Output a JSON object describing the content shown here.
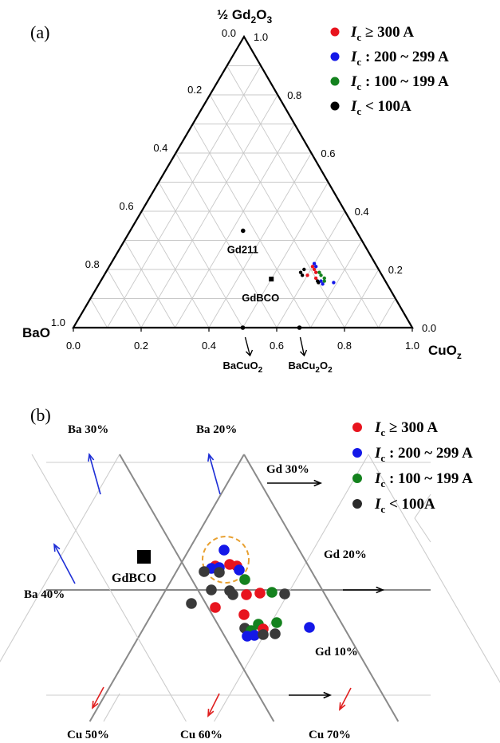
{
  "chart_data": [
    {
      "type": "scatter",
      "panel_label": "(a)",
      "axes": {
        "top": {
          "label": "½ Gd",
          "sub1": "2",
          "mid": "O",
          "sub2": "3"
        },
        "left": {
          "label": "BaO"
        },
        "right": {
          "label": "CuO",
          "sub": "z"
        },
        "bottom_ticks": [
          "0.0",
          "0.2",
          "0.4",
          "0.6",
          "0.8",
          "1.0"
        ],
        "left_ticks": [
          "0.0",
          "0.2",
          "0.4",
          "0.6",
          "0.8",
          "1.0"
        ],
        "right_ticks": [
          "1.0",
          "0.8",
          "0.6",
          "0.4",
          "0.2",
          "0.0"
        ],
        "range": [
          0,
          1
        ],
        "grid": true
      },
      "legend": {
        "placement": "top-right",
        "entries": [
          {
            "color": "#e8141e",
            "label": "≥ 300 A"
          },
          {
            "color": "#1418e8",
            "label": ": 200 ~ 299 A"
          },
          {
            "color": "#14821e",
            "label": ": 100 ~ 199 A"
          },
          {
            "color": "#000000",
            "label": "< 100A"
          }
        ],
        "symbol": "I",
        "symbol_sub": "c"
      },
      "annotations": [
        {
          "text": "Gd211",
          "a": 0.333,
          "c": 0.333
        },
        {
          "text": "GdBCO",
          "a": 0.167,
          "c": 0.5
        },
        {
          "text": "BaCuO",
          "sub": "2",
          "a": 0.0,
          "c": 0.5
        },
        {
          "text": "BaCu",
          "sub": "2",
          "tail": "O",
          "sub2": "2",
          "a": 0.0,
          "c": 0.667
        }
      ],
      "points": [
        {
          "a": 0.21,
          "c": 0.6,
          "color": "#e8141e"
        },
        {
          "a": 0.2,
          "c": 0.61,
          "color": "#e8141e"
        },
        {
          "a": 0.19,
          "c": 0.62,
          "color": "#e8141e"
        },
        {
          "a": 0.18,
          "c": 0.6,
          "color": "#e8141e"
        },
        {
          "a": 0.17,
          "c": 0.63,
          "color": "#e8141e"
        },
        {
          "a": 0.22,
          "c": 0.6,
          "color": "#1418e8"
        },
        {
          "a": 0.21,
          "c": 0.61,
          "color": "#1418e8"
        },
        {
          "a": 0.16,
          "c": 0.65,
          "color": "#1418e8"
        },
        {
          "a": 0.15,
          "c": 0.66,
          "color": "#1418e8"
        },
        {
          "a": 0.155,
          "c": 0.69,
          "color": "#1418e8"
        },
        {
          "a": 0.19,
          "c": 0.63,
          "color": "#14821e"
        },
        {
          "a": 0.18,
          "c": 0.64,
          "color": "#14821e"
        },
        {
          "a": 0.16,
          "c": 0.66,
          "color": "#14821e"
        },
        {
          "a": 0.17,
          "c": 0.655,
          "color": "#14821e"
        },
        {
          "a": 0.2,
          "c": 0.58,
          "color": "#000000"
        },
        {
          "a": 0.19,
          "c": 0.575,
          "color": "#000000"
        },
        {
          "a": 0.18,
          "c": 0.585,
          "color": "#000000"
        },
        {
          "a": 0.16,
          "c": 0.64,
          "color": "#000000"
        },
        {
          "a": 0.155,
          "c": 0.645,
          "color": "#000000"
        }
      ]
    },
    {
      "type": "scatter",
      "panel_label": "(b)",
      "grid_labels": [
        {
          "text": "Ba 30%"
        },
        {
          "text": "Ba 20%"
        },
        {
          "text": "Ba 40%"
        },
        {
          "text": "Gd 30%"
        },
        {
          "text": "Gd 20%"
        },
        {
          "text": "Gd 10%"
        },
        {
          "text": "Cu 50%"
        },
        {
          "text": "Cu 60%"
        },
        {
          "text": "Cu 70%"
        }
      ],
      "annotation": "GdBCO",
      "legend": {
        "placement": "top-right",
        "entries": [
          {
            "color": "#e8141e",
            "label": "≥ 300 A"
          },
          {
            "color": "#1418e8",
            "label": ": 200 ~ 299 A"
          },
          {
            "color": "#14821e",
            "label": ": 100 ~ 199 A"
          },
          {
            "color": "#2a2a2a",
            "label": "< 100A"
          }
        ],
        "symbol": "I",
        "symbol_sub": "c"
      },
      "highlight": {
        "shape": "dashed circle",
        "color": "#e8a030"
      }
    }
  ]
}
